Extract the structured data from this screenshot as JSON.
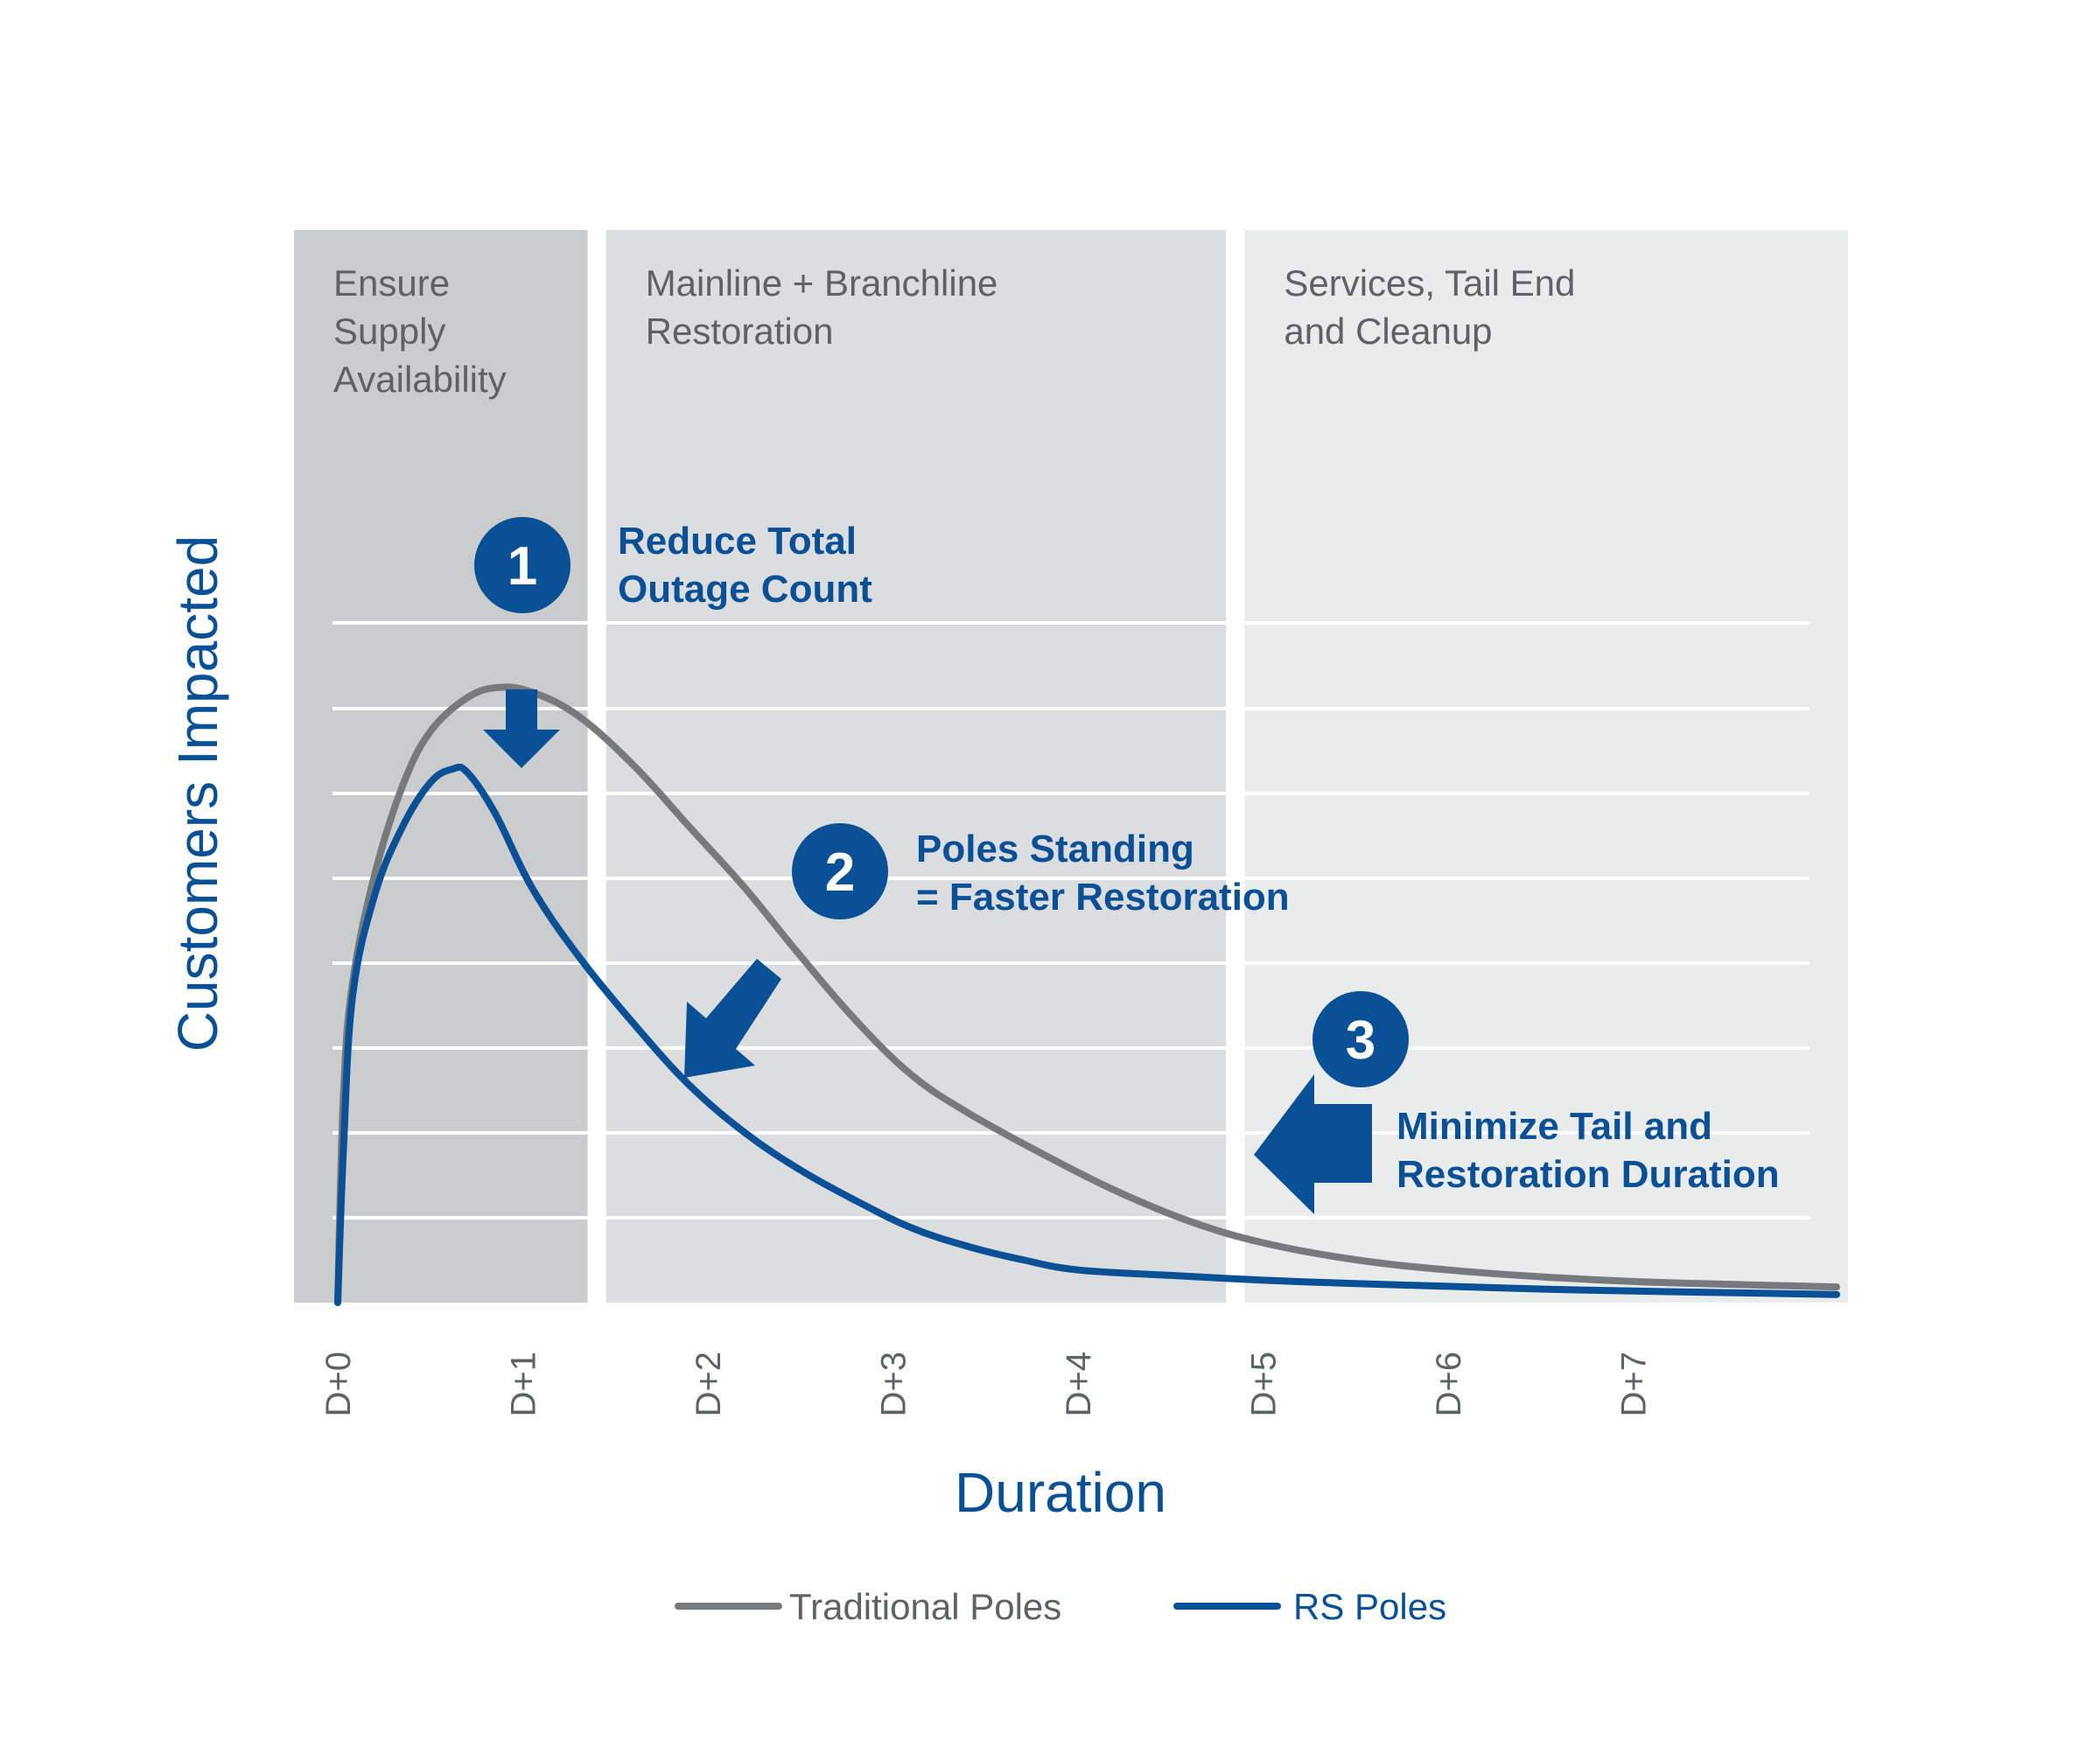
{
  "colors": {
    "blue": "#0a5096",
    "gray_line": "#777a7d",
    "text_gray": "#5f6264",
    "panel_dark": "#cbccce",
    "panel_mid": "#dcdddf",
    "panel_light": "#eaebeb",
    "grid": "#ffffff"
  },
  "chart_data": {
    "type": "line",
    "title": "",
    "xlabel": "Duration",
    "ylabel": "Customers Impacted",
    "x_ticks": [
      "D+0",
      "D+1",
      "D+2",
      "D+3",
      "D+4",
      "D+5",
      "D+6",
      "D+7"
    ],
    "xlim": [
      0,
      8.1
    ],
    "ylim": [
      0,
      100
    ],
    "y_tick_labels_shown": false,
    "grid": "horizontal",
    "legend_position": "bottom-center",
    "phases": [
      {
        "label_lines": [
          "Ensure",
          "Supply",
          "Availability"
        ],
        "start": -0.2,
        "end": 1.35
      },
      {
        "label_lines": [
          "Mainline + Branchline",
          "Restoration"
        ],
        "start": 1.45,
        "end": 4.8
      },
      {
        "label_lines": [
          "Services, Tail End",
          "and Cleanup"
        ],
        "start": 4.9,
        "end": 8.1
      }
    ],
    "series": [
      {
        "name": "Traditional Poles",
        "color": "#777a7d",
        "points": [
          [
            0.0,
            0
          ],
          [
            0.03,
            30
          ],
          [
            0.08,
            47
          ],
          [
            0.2,
            63
          ],
          [
            0.35,
            76
          ],
          [
            0.5,
            84
          ],
          [
            0.7,
            89
          ],
          [
            0.87,
            90.5
          ],
          [
            1.05,
            89.8
          ],
          [
            1.3,
            86.3
          ],
          [
            1.6,
            79
          ],
          [
            1.9,
            70
          ],
          [
            2.2,
            61
          ],
          [
            2.5,
            51
          ],
          [
            2.8,
            41.5
          ],
          [
            3.1,
            33.5
          ],
          [
            3.4,
            28
          ],
          [
            3.8,
            22
          ],
          [
            4.2,
            16.5
          ],
          [
            4.6,
            12
          ],
          [
            5.0,
            8.8
          ],
          [
            5.5,
            6.3
          ],
          [
            6.0,
            4.8
          ],
          [
            6.5,
            3.8
          ],
          [
            7.0,
            3.1
          ],
          [
            7.5,
            2.7
          ],
          [
            8.1,
            2.3
          ]
        ]
      },
      {
        "name": "RS Poles",
        "color": "#0a5096",
        "points": [
          [
            0.0,
            0
          ],
          [
            0.03,
            22
          ],
          [
            0.08,
            45
          ],
          [
            0.2,
            60
          ],
          [
            0.35,
            70
          ],
          [
            0.5,
            76.5
          ],
          [
            0.62,
            78.5
          ],
          [
            0.7,
            78
          ],
          [
            0.85,
            72
          ],
          [
            1.05,
            61
          ],
          [
            1.3,
            51
          ],
          [
            1.6,
            41
          ],
          [
            1.9,
            32
          ],
          [
            2.2,
            25
          ],
          [
            2.5,
            19.5
          ],
          [
            2.8,
            15
          ],
          [
            3.1,
            11
          ],
          [
            3.4,
            8.3
          ],
          [
            3.7,
            6.3
          ],
          [
            4.0,
            4.8
          ],
          [
            4.5,
            4.0
          ],
          [
            5.0,
            3.3
          ],
          [
            5.5,
            2.8
          ],
          [
            6.0,
            2.4
          ],
          [
            6.5,
            2.0
          ],
          [
            7.0,
            1.7
          ],
          [
            8.1,
            1.2
          ]
        ]
      }
    ],
    "annotations": [
      {
        "number": "1",
        "text_lines": [
          "Reduce Total",
          "Outage Count"
        ]
      },
      {
        "number": "2",
        "text_lines": [
          "Poles Standing",
          "= Faster Restoration"
        ]
      },
      {
        "number": "3",
        "text_lines": [
          "Minimize Tail and",
          "Restoration Duration"
        ]
      }
    ]
  }
}
